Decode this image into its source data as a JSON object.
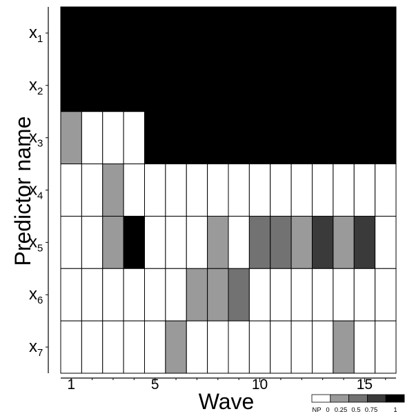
{
  "chart_data": {
    "type": "heatmap",
    "xlabel": "Wave",
    "ylabel": "Predictor name",
    "x_ticks": [
      1,
      5,
      10,
      15
    ],
    "waves": [
      1,
      2,
      3,
      4,
      5,
      6,
      7,
      8,
      9,
      10,
      11,
      12,
      13,
      14,
      15,
      16
    ],
    "rows": [
      {
        "base": "x",
        "sub": "1",
        "values": [
          1,
          1,
          1,
          1,
          1,
          1,
          1,
          1,
          1,
          1,
          1,
          1,
          1,
          1,
          1,
          1
        ]
      },
      {
        "base": "x",
        "sub": "2",
        "values": [
          1,
          1,
          1,
          1,
          1,
          1,
          1,
          1,
          1,
          1,
          1,
          1,
          1,
          1,
          1,
          1
        ]
      },
      {
        "base": "x",
        "sub": "3",
        "values": [
          0.25,
          "NP",
          "NP",
          "NP",
          1,
          1,
          1,
          1,
          1,
          1,
          1,
          1,
          1,
          1,
          1,
          1
        ]
      },
      {
        "base": "x",
        "sub": "4",
        "values": [
          "NP",
          "NP",
          0.25,
          "NP",
          "NP",
          "NP",
          "NP",
          "NP",
          "NP",
          "NP",
          "NP",
          "NP",
          "NP",
          "NP",
          "NP",
          "NP"
        ]
      },
      {
        "base": "x",
        "sub": "5",
        "values": [
          "NP",
          "NP",
          0.25,
          1,
          "NP",
          "NP",
          "NP",
          0.25,
          "NP",
          0.5,
          0.5,
          0.25,
          0.75,
          0.25,
          0.75,
          "NP"
        ]
      },
      {
        "base": "x",
        "sub": "6",
        "values": [
          "NP",
          "NP",
          "NP",
          "NP",
          "NP",
          "NP",
          0.25,
          0.25,
          0.5,
          "NP",
          "NP",
          "NP",
          "NP",
          "NP",
          "NP",
          "NP"
        ]
      },
      {
        "base": "x",
        "sub": "7",
        "values": [
          "NP",
          "NP",
          "NP",
          "NP",
          "NP",
          0.25,
          "NP",
          "NP",
          "NP",
          "NP",
          "NP",
          "NP",
          "NP",
          0.25,
          "NP",
          "NP"
        ]
      }
    ],
    "legend": {
      "labels": [
        "NP",
        "0",
        "0.25",
        "0.5",
        "0.75",
        "1"
      ],
      "colors": [
        "#ffffff",
        "#9a9a9a",
        "#727272",
        "#3a3a3a",
        "#000000"
      ]
    },
    "colors": {
      "NP": "#ffffff",
      "0.25": "#9a9a9a",
      "0.5": "#727272",
      "0.75": "#3a3a3a",
      "1": "#000000"
    }
  }
}
